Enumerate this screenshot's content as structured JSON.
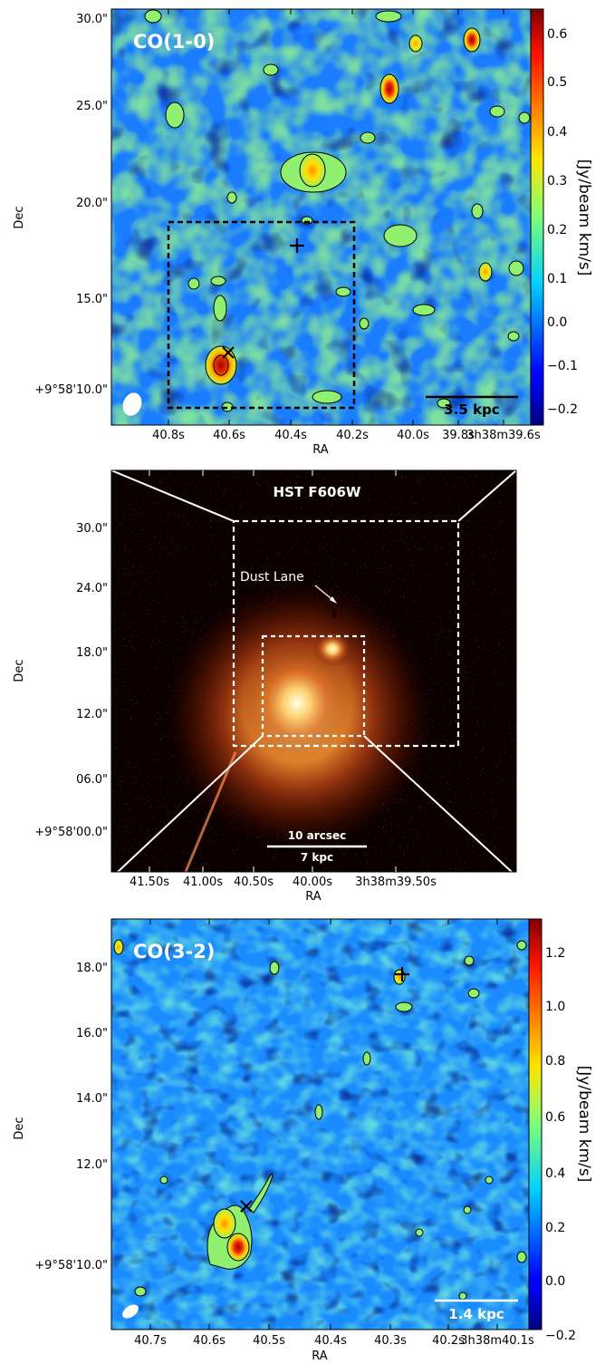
{
  "panels": [
    {
      "id": "co10",
      "title": "CO(1-0)",
      "xlabel": "RA",
      "ylabel": "Dec",
      "x_ticks": [
        "40.8s",
        "40.6s",
        "40.4s",
        "40.2s",
        "40.0s",
        "39.8s",
        "3h38m39.6s"
      ],
      "y_ticks": [
        "30.0\"",
        "25.0\"",
        "20.0\"",
        "15.0\"",
        "+9°58'10.0\""
      ],
      "scalebar": "3.5 kpc",
      "colorbar_label": "[Jy/beam km/s]",
      "colorbar_ticks": [
        "0.6",
        "0.5",
        "0.4",
        "0.3",
        "0.2",
        "0.1",
        "0.0",
        "−0.1",
        "−0.2"
      ],
      "colorbar_range": [
        -0.24,
        0.65
      ],
      "colormap": "jet",
      "markers": [
        "plus",
        "cross"
      ],
      "has_beam": true,
      "has_inset_box": true
    },
    {
      "id": "hst",
      "title": "HST F606W",
      "xlabel": "RA",
      "ylabel": "Dec",
      "x_ticks": [
        "41.50s",
        "41.00s",
        "40.50s",
        "40.00s",
        "3h38m39.50s"
      ],
      "y_ticks": [
        "30.0\"",
        "24.0\"",
        "18.0\"",
        "12.0\"",
        "06.0\"",
        "+9°58'00.0\""
      ],
      "annotation": "Dust Lane",
      "scalebar_top": "10 arcsec",
      "scalebar_bottom": "7 kpc",
      "colormap": "afmhot"
    },
    {
      "id": "co32",
      "title": "CO(3-2)",
      "xlabel": "RA",
      "ylabel": "Dec",
      "x_ticks": [
        "40.7s",
        "40.6s",
        "40.5s",
        "40.4s",
        "40.3s",
        "40.2s",
        "3h38m40.1s"
      ],
      "y_ticks": [
        "18.0\"",
        "16.0\"",
        "14.0\"",
        "12.0\"",
        "+9°58'10.0\""
      ],
      "scalebar": "1.4 kpc",
      "colorbar_label": "[Jy/beam km/s]",
      "colorbar_ticks": [
        "1.2",
        "1.0",
        "0.8",
        "0.6",
        "0.4",
        "0.2",
        "0.0",
        "−0.2"
      ],
      "colorbar_range": [
        -0.3,
        1.3
      ],
      "colormap": "jet",
      "markers": [
        "plus",
        "cross"
      ],
      "has_beam": true
    }
  ]
}
